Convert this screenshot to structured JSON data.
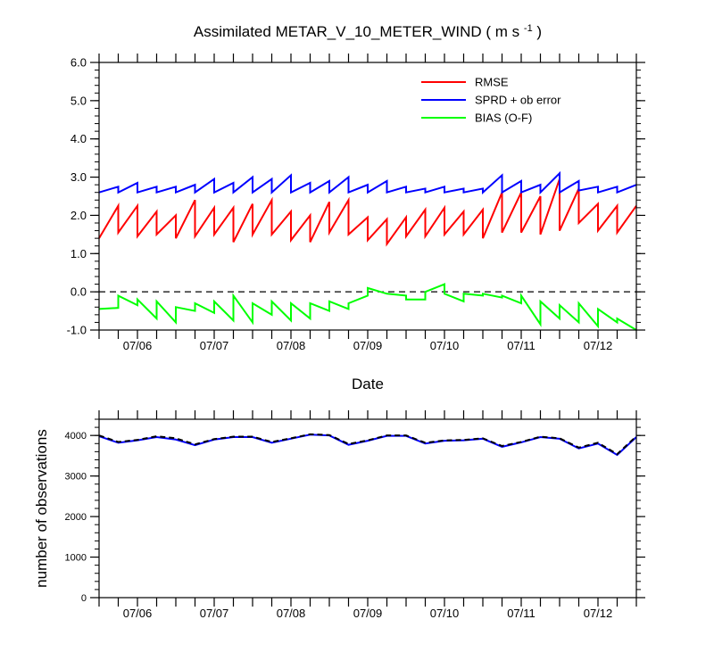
{
  "chart_data": [
    {
      "type": "line",
      "title": "Assimilated METAR_V_10_METER_WIND",
      "units_base": "m s",
      "units_exp": "-1",
      "xlabel": "Date",
      "ylabel": "",
      "ylim": [
        -1.0,
        6.0
      ],
      "yticks": [
        "-1.0",
        "0.0",
        "1.0",
        "2.0",
        "3.0",
        "4.0",
        "5.0",
        "6.0"
      ],
      "x_range": [
        "07/05 12:00",
        "07/12 12:00"
      ],
      "x_ticks": [
        "07/06",
        "07/07",
        "07/08",
        "07/09",
        "07/10",
        "07/11",
        "07/12"
      ],
      "zero_line": "dashed",
      "legend_position": "top-right",
      "series": [
        {
          "name": "RMSE",
          "color": "#ff0000",
          "x": [
            "07/05 12:00",
            "07/05 18:00",
            "07/05 18:00",
            "07/06 00:00",
            "07/06 00:00",
            "07/06 06:00",
            "07/06 06:00",
            "07/06 12:00",
            "07/06 12:00",
            "07/06 18:00",
            "07/06 18:00",
            "07/07 00:00",
            "07/07 00:00",
            "07/07 06:00",
            "07/07 06:00",
            "07/07 12:00",
            "07/07 12:00",
            "07/07 18:00",
            "07/07 18:00",
            "07/08 00:00",
            "07/08 00:00",
            "07/08 06:00",
            "07/08 06:00",
            "07/08 12:00",
            "07/08 12:00",
            "07/08 18:00",
            "07/08 18:00",
            "07/09 00:00",
            "07/09 00:00",
            "07/09 06:00",
            "07/09 06:00",
            "07/09 12:00",
            "07/09 12:00",
            "07/09 18:00",
            "07/09 18:00",
            "07/10 00:00",
            "07/10 00:00",
            "07/10 06:00",
            "07/10 06:00",
            "07/10 12:00",
            "07/10 12:00",
            "07/10 18:00",
            "07/10 18:00",
            "07/11 00:00",
            "07/11 00:00",
            "07/11 06:00",
            "07/11 06:00",
            "07/11 12:00",
            "07/11 12:00",
            "07/11 18:00",
            "07/11 18:00",
            "07/12 00:00",
            "07/12 00:00",
            "07/12 06:00",
            "07/12 06:00",
            "07/12 12:00"
          ],
          "y": [
            1.4,
            2.25,
            1.55,
            2.25,
            1.45,
            2.1,
            1.5,
            2.0,
            1.4,
            2.4,
            1.45,
            2.2,
            1.5,
            2.2,
            1.3,
            2.3,
            1.5,
            2.4,
            1.5,
            2.1,
            1.35,
            2.0,
            1.3,
            2.35,
            1.55,
            2.4,
            1.5,
            1.95,
            1.35,
            1.9,
            1.25,
            1.95,
            1.45,
            2.15,
            1.45,
            2.2,
            1.5,
            2.1,
            1.5,
            2.15,
            1.4,
            2.6,
            1.55,
            2.6,
            1.55,
            2.5,
            1.5,
            2.95,
            1.6,
            2.7,
            1.8,
            2.3,
            1.6,
            2.25,
            1.55,
            2.25
          ]
        },
        {
          "name": "SPRD + ob error",
          "color": "#0000ff",
          "x": [
            "07/05 12:00",
            "07/05 18:00",
            "07/05 18:00",
            "07/06 00:00",
            "07/06 00:00",
            "07/06 06:00",
            "07/06 06:00",
            "07/06 12:00",
            "07/06 12:00",
            "07/06 18:00",
            "07/06 18:00",
            "07/07 00:00",
            "07/07 00:00",
            "07/07 06:00",
            "07/07 06:00",
            "07/07 12:00",
            "07/07 12:00",
            "07/07 18:00",
            "07/07 18:00",
            "07/08 00:00",
            "07/08 00:00",
            "07/08 06:00",
            "07/08 06:00",
            "07/08 12:00",
            "07/08 12:00",
            "07/08 18:00",
            "07/08 18:00",
            "07/09 00:00",
            "07/09 00:00",
            "07/09 06:00",
            "07/09 06:00",
            "07/09 12:00",
            "07/09 12:00",
            "07/09 18:00",
            "07/09 18:00",
            "07/10 00:00",
            "07/10 00:00",
            "07/10 06:00",
            "07/10 06:00",
            "07/10 12:00",
            "07/10 12:00",
            "07/10 18:00",
            "07/10 18:00",
            "07/11 00:00",
            "07/11 00:00",
            "07/11 06:00",
            "07/11 06:00",
            "07/11 12:00",
            "07/11 12:00",
            "07/11 18:00",
            "07/11 18:00",
            "07/12 00:00",
            "07/12 00:00",
            "07/12 06:00",
            "07/12 06:00",
            "07/12 12:00"
          ],
          "y": [
            2.6,
            2.75,
            2.6,
            2.85,
            2.6,
            2.75,
            2.6,
            2.75,
            2.6,
            2.8,
            2.6,
            2.95,
            2.6,
            2.85,
            2.6,
            3.0,
            2.6,
            2.95,
            2.6,
            3.05,
            2.6,
            2.85,
            2.6,
            2.9,
            2.6,
            3.0,
            2.6,
            2.8,
            2.6,
            2.9,
            2.6,
            2.75,
            2.6,
            2.7,
            2.6,
            2.75,
            2.6,
            2.7,
            2.6,
            2.7,
            2.6,
            3.05,
            2.6,
            2.9,
            2.6,
            2.8,
            2.6,
            3.1,
            2.6,
            2.9,
            2.65,
            2.75,
            2.6,
            2.75,
            2.6,
            2.8
          ]
        },
        {
          "name": "BIAS (O-F)",
          "color": "#00ff00",
          "x": [
            "07/05 12:00",
            "07/05 18:00",
            "07/05 18:00",
            "07/06 00:00",
            "07/06 00:00",
            "07/06 06:00",
            "07/06 06:00",
            "07/06 12:00",
            "07/06 12:00",
            "07/06 18:00",
            "07/06 18:00",
            "07/07 00:00",
            "07/07 00:00",
            "07/07 06:00",
            "07/07 06:00",
            "07/07 12:00",
            "07/07 12:00",
            "07/07 18:00",
            "07/07 18:00",
            "07/08 00:00",
            "07/08 00:00",
            "07/08 06:00",
            "07/08 06:00",
            "07/08 12:00",
            "07/08 12:00",
            "07/08 18:00",
            "07/08 18:00",
            "07/09 00:00",
            "07/09 00:00",
            "07/09 06:00",
            "07/09 06:00",
            "07/09 12:00",
            "07/09 12:00",
            "07/09 18:00",
            "07/09 18:00",
            "07/10 00:00",
            "07/10 00:00",
            "07/10 06:00",
            "07/10 06:00",
            "07/10 12:00",
            "07/10 12:00",
            "07/10 18:00",
            "07/10 18:00",
            "07/11 00:00",
            "07/11 00:00",
            "07/11 06:00",
            "07/11 06:00",
            "07/11 12:00",
            "07/11 12:00",
            "07/11 18:00",
            "07/11 18:00",
            "07/12 00:00",
            "07/12 00:00",
            "07/12 06:00",
            "07/12 06:00",
            "07/12 12:00"
          ],
          "y": [
            -0.45,
            -0.42,
            -0.1,
            -0.35,
            -0.2,
            -0.7,
            -0.25,
            -0.8,
            -0.4,
            -0.5,
            -0.3,
            -0.55,
            -0.25,
            -0.75,
            -0.1,
            -0.8,
            -0.3,
            -0.6,
            -0.25,
            -0.75,
            -0.3,
            -0.7,
            -0.3,
            -0.5,
            -0.25,
            -0.45,
            -0.3,
            -0.1,
            0.1,
            -0.05,
            -0.05,
            -0.1,
            -0.2,
            -0.2,
            0.0,
            0.2,
            -0.05,
            -0.25,
            -0.05,
            -0.1,
            -0.05,
            -0.15,
            -0.1,
            -0.3,
            -0.1,
            -0.85,
            -0.25,
            -0.7,
            -0.35,
            -0.8,
            -0.3,
            -0.9,
            -0.45,
            -0.8,
            -0.7,
            -1.0
          ]
        }
      ]
    },
    {
      "type": "line",
      "title": "",
      "xlabel": "",
      "ylabel": "number of observations",
      "ylim": [
        0,
        4400
      ],
      "yticks": [
        "0",
        "1000",
        "2000",
        "3000",
        "4000"
      ],
      "x_range": [
        "07/05 12:00",
        "07/12 12:00"
      ],
      "x_ticks": [
        "07/06",
        "07/07",
        "07/08",
        "07/09",
        "07/10",
        "07/11",
        "07/12"
      ],
      "series": [
        {
          "name": "",
          "color": "#0000ff",
          "x": [
            "07/05 12:00",
            "07/05 18:00",
            "07/06 00:00",
            "07/06 06:00",
            "07/06 12:00",
            "07/06 18:00",
            "07/07 00:00",
            "07/07 06:00",
            "07/07 12:00",
            "07/07 18:00",
            "07/08 00:00",
            "07/08 06:00",
            "07/08 12:00",
            "07/08 18:00",
            "07/09 00:00",
            "07/09 06:00",
            "07/09 12:00",
            "07/09 18:00",
            "07/10 00:00",
            "07/10 06:00",
            "07/10 12:00",
            "07/10 18:00",
            "07/11 00:00",
            "07/11 06:00",
            "07/11 12:00",
            "07/11 18:00",
            "07/12 00:00",
            "07/12 06:00",
            "07/12 12:00"
          ],
          "y": [
            3980,
            3820,
            3880,
            3960,
            3900,
            3760,
            3900,
            3960,
            3960,
            3820,
            3920,
            4020,
            4000,
            3770,
            3870,
            3990,
            3990,
            3800,
            3870,
            3880,
            3920,
            3720,
            3830,
            3960,
            3920,
            3680,
            3800,
            3520,
            3960
          ]
        },
        {
          "name": "",
          "color": "#000000",
          "dash": "dashed",
          "x": [
            "07/05 12:00",
            "07/05 18:00",
            "07/06 00:00",
            "07/06 06:00",
            "07/06 12:00",
            "07/06 18:00",
            "07/07 00:00",
            "07/07 06:00",
            "07/07 12:00",
            "07/07 18:00",
            "07/08 00:00",
            "07/08 06:00",
            "07/08 12:00",
            "07/08 18:00",
            "07/09 00:00",
            "07/09 06:00",
            "07/09 12:00",
            "07/09 18:00",
            "07/10 00:00",
            "07/10 06:00",
            "07/10 12:00",
            "07/10 18:00",
            "07/11 00:00",
            "07/11 06:00",
            "07/11 12:00",
            "07/11 18:00",
            "07/12 00:00",
            "07/12 06:00",
            "07/12 12:00"
          ],
          "y": [
            4000,
            3840,
            3890,
            3980,
            3930,
            3780,
            3910,
            3970,
            3970,
            3840,
            3930,
            4030,
            4010,
            3790,
            3880,
            4000,
            4000,
            3820,
            3880,
            3890,
            3930,
            3740,
            3840,
            3970,
            3930,
            3700,
            3820,
            3540,
            3980
          ]
        }
      ]
    }
  ]
}
